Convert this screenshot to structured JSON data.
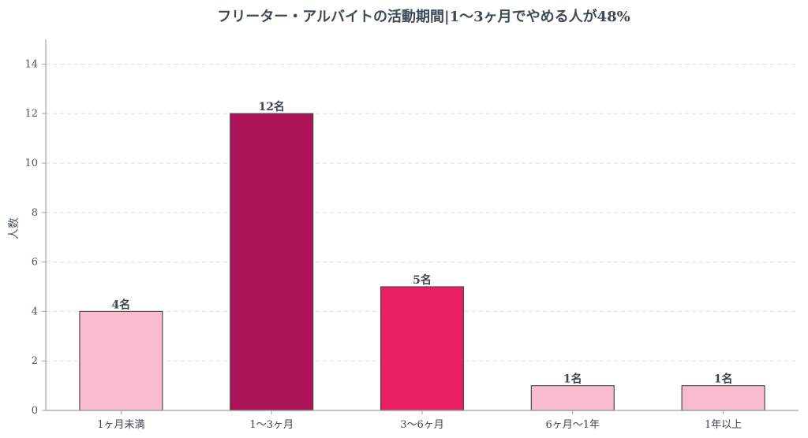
{
  "chart_data": {
    "type": "bar",
    "title": "フリーター・アルバイトの活動期間|1〜3ヶ月でやめる人が48%",
    "ylabel": "人数",
    "xlabel": "",
    "ylim": [
      0,
      15
    ],
    "yticks": [
      0,
      2,
      4,
      6,
      8,
      10,
      12,
      14
    ],
    "grid": true,
    "categories": [
      "1ヶ月未満",
      "1〜3ヶ月",
      "3〜6ヶ月",
      "6ヶ月〜1年",
      "1年以上"
    ],
    "values": [
      4,
      12,
      5,
      1,
      1
    ],
    "data_labels": [
      "4名",
      "12名",
      "5名",
      "1名",
      "1名"
    ],
    "colors": [
      "#f8bbcf",
      "#ad1457",
      "#e91e63",
      "#f8bbcf",
      "#f8bbcf"
    ],
    "edge_color": "#4a4a4a",
    "axis_color": "#9aa5a8",
    "grid_color": "#d8dde0"
  }
}
